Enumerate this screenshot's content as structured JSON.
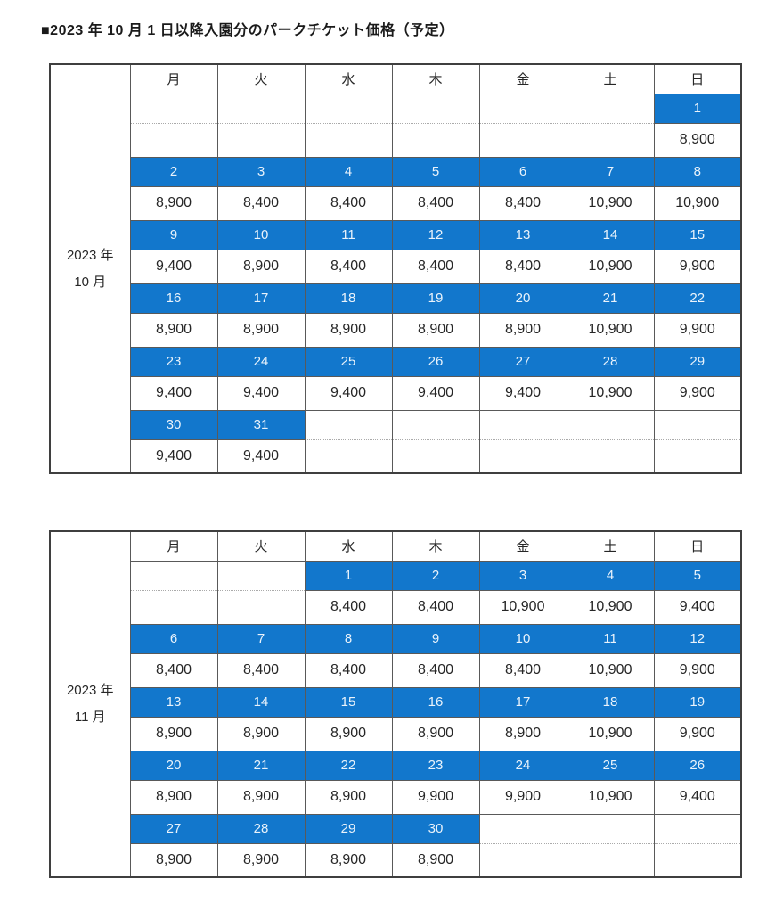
{
  "title": "■2023 年 10 月 1 日以降入園分のパークチケット価格（予定）",
  "colors": {
    "highlight_blue": "#1277CC",
    "day_number_text": "#EAF3FB",
    "price_text": "#262626",
    "outer_border": "#3F3F3F",
    "inner_border": "#595959",
    "dotted_border": "#AAAAAA"
  },
  "weekday_headers": [
    "月",
    "火",
    "水",
    "木",
    "金",
    "土",
    "日"
  ],
  "tables": [
    {
      "month_line1": "2023 年",
      "month_line2": "10 月",
      "weeks": [
        {
          "days": [
            "",
            "",
            "",
            "",
            "",
            "",
            "1"
          ],
          "prices": [
            "",
            "",
            "",
            "",
            "",
            "",
            "8,900"
          ]
        },
        {
          "days": [
            "2",
            "3",
            "4",
            "5",
            "6",
            "7",
            "8"
          ],
          "prices": [
            "8,900",
            "8,400",
            "8,400",
            "8,400",
            "8,400",
            "10,900",
            "10,900"
          ]
        },
        {
          "days": [
            "9",
            "10",
            "11",
            "12",
            "13",
            "14",
            "15"
          ],
          "prices": [
            "9,400",
            "8,900",
            "8,400",
            "8,400",
            "8,400",
            "10,900",
            "9,900"
          ]
        },
        {
          "days": [
            "16",
            "17",
            "18",
            "19",
            "20",
            "21",
            "22"
          ],
          "prices": [
            "8,900",
            "8,900",
            "8,900",
            "8,900",
            "8,900",
            "10,900",
            "9,900"
          ]
        },
        {
          "days": [
            "23",
            "24",
            "25",
            "26",
            "27",
            "28",
            "29"
          ],
          "prices": [
            "9,400",
            "9,400",
            "9,400",
            "9,400",
            "9,400",
            "10,900",
            "9,900"
          ]
        },
        {
          "days": [
            "30",
            "31",
            "",
            "",
            "",
            "",
            ""
          ],
          "prices": [
            "9,400",
            "9,400",
            "",
            "",
            "",
            "",
            ""
          ]
        }
      ]
    },
    {
      "month_line1": "2023 年",
      "month_line2": "11 月",
      "weeks": [
        {
          "days": [
            "",
            "",
            "1",
            "2",
            "3",
            "4",
            "5"
          ],
          "prices": [
            "",
            "",
            "8,400",
            "8,400",
            "10,900",
            "10,900",
            "9,400"
          ]
        },
        {
          "days": [
            "6",
            "7",
            "8",
            "9",
            "10",
            "11",
            "12"
          ],
          "prices": [
            "8,400",
            "8,400",
            "8,400",
            "8,400",
            "8,400",
            "10,900",
            "9,900"
          ]
        },
        {
          "days": [
            "13",
            "14",
            "15",
            "16",
            "17",
            "18",
            "19"
          ],
          "prices": [
            "8,900",
            "8,900",
            "8,900",
            "8,900",
            "8,900",
            "10,900",
            "9,900"
          ]
        },
        {
          "days": [
            "20",
            "21",
            "22",
            "23",
            "24",
            "25",
            "26"
          ],
          "prices": [
            "8,900",
            "8,900",
            "8,900",
            "9,900",
            "9,900",
            "10,900",
            "9,400"
          ]
        },
        {
          "days": [
            "27",
            "28",
            "29",
            "30",
            "",
            "",
            ""
          ],
          "prices": [
            "8,900",
            "8,900",
            "8,900",
            "8,900",
            "",
            "",
            ""
          ]
        }
      ]
    }
  ]
}
